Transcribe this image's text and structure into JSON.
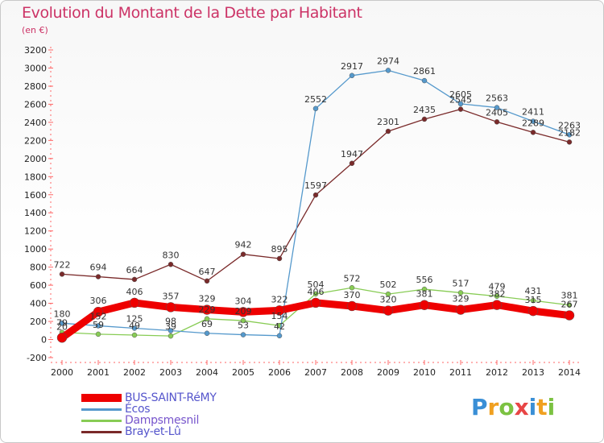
{
  "header": {
    "title": "Evolution du Montant de la Dette par Habitant",
    "unit": "(en €)"
  },
  "logo": {
    "text": "Proxiti",
    "letters": [
      "P",
      "r",
      "o",
      "x",
      "i",
      "t",
      "i"
    ],
    "colors": [
      "#3a8fd6",
      "#f0a020",
      "#7cc242",
      "#e84545",
      "#3a8fd6",
      "#f0a020",
      "#7cc242"
    ]
  },
  "chart_data": {
    "type": "line",
    "title": "Evolution du Montant de la Dette par Habitant",
    "ylabel": "(en €)",
    "xlabel": "",
    "x": [
      "2000",
      "2001",
      "2002",
      "2003",
      "2004",
      "2005",
      "2006",
      "2007",
      "2008",
      "2009",
      "2010",
      "2011",
      "2012",
      "2013",
      "2014"
    ],
    "ylim": [
      -200,
      3200
    ],
    "yticks": [
      -200,
      0,
      200,
      400,
      600,
      800,
      1000,
      1200,
      1400,
      1600,
      1800,
      2000,
      2200,
      2400,
      2600,
      2800,
      3000,
      3200
    ],
    "grid": false,
    "legend_position": "bottom-left",
    "series": [
      {
        "name": "BUS-SAINT-RéMY",
        "color": "#ee0000",
        "values": [
          20,
          306,
          406,
          357,
          329,
          304,
          322,
          406,
          370,
          320,
          381,
          329,
          382,
          315,
          267
        ],
        "labels": [
          "20",
          "306",
          "406",
          "357",
          "329",
          "304",
          "322",
          "406",
          "370",
          "320",
          "381",
          "329",
          "382",
          "315",
          "267"
        ]
      },
      {
        "name": "Écos",
        "color": "#5599cc",
        "values": [
          180,
          152,
          125,
          98,
          69,
          53,
          42,
          2552,
          2917,
          2974,
          2861,
          2605,
          2563,
          2411,
          2263
        ],
        "labels": [
          "180",
          "152",
          "125",
          "98",
          "69",
          "53",
          "42",
          "2552",
          "2917",
          "2974",
          "2861",
          "2605",
          "2563",
          "2411",
          "2263"
        ]
      },
      {
        "name": "Dampsmesnil",
        "color": "#88cc55",
        "values": [
          79,
          59,
          49,
          39,
          229,
          209,
          154,
          504,
          572,
          502,
          556,
          517,
          479,
          431,
          381
        ],
        "labels": [
          "79",
          "59",
          "49",
          "39",
          "229",
          "209",
          "154",
          "504",
          "572",
          "502",
          "556",
          "517",
          "479",
          "431",
          "381"
        ]
      },
      {
        "name": "Bray-et-Lû",
        "color": "#7a2a2a",
        "values": [
          722,
          694,
          664,
          830,
          647,
          942,
          895,
          1597,
          1947,
          2301,
          2435,
          2545,
          2405,
          2289,
          2182
        ],
        "labels": [
          "722",
          "694",
          "664",
          "830",
          "647",
          "942",
          "895",
          "1597",
          "1947",
          "2301",
          "2435",
          "2545",
          "2405",
          "2289",
          "2182"
        ]
      }
    ]
  }
}
